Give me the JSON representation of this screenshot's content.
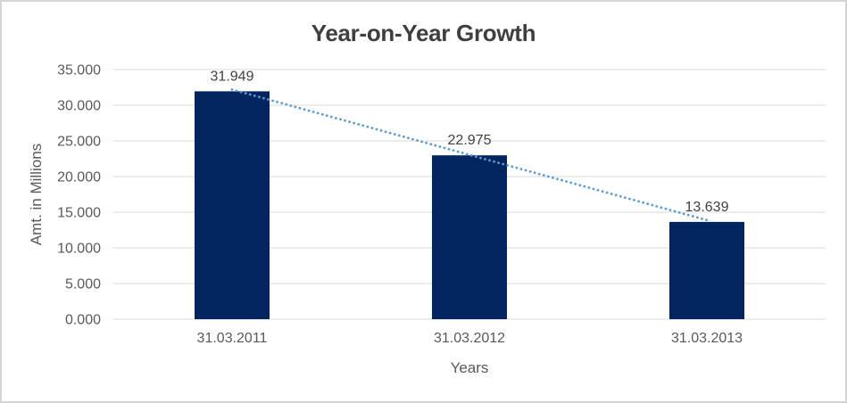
{
  "chart_data": {
    "type": "bar",
    "title": "Year-on-Year Growth",
    "xlabel": "Years",
    "ylabel": "Amt. in Millions",
    "categories": [
      "31.03.2011",
      "31.03.2012",
      "31.03.2013"
    ],
    "values": [
      31.949,
      22.975,
      13.639
    ],
    "data_labels": [
      "31.949",
      "22.975",
      "13.639"
    ],
    "ylim": [
      0,
      35
    ],
    "ytick_step": 5,
    "ytick_labels": [
      "0.000",
      "5.000",
      "10.000",
      "15.000",
      "20.000",
      "25.000",
      "30.000",
      "35.000"
    ],
    "grid": true,
    "legend": "none",
    "trendline": {
      "style": "dotted",
      "from_category": "31.03.2011",
      "to_category": "31.03.2013"
    },
    "colors": {
      "bar": "#03255F",
      "trendline": "#5B9BD5",
      "gridline": "#D9D9D9",
      "title_text": "#3F3F3F",
      "axis_text": "#595959",
      "data_label_text": "#404040",
      "frame_border": "#D5D5D5",
      "background": "#FFFFFF"
    }
  }
}
